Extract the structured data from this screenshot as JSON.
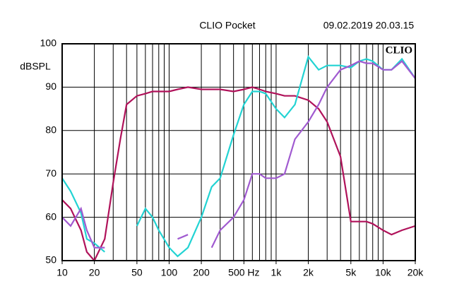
{
  "chart_data": {
    "type": "line",
    "title": "CLIO Pocket",
    "subtitle": "09.02.2019 20.03.15",
    "logo": "CLIO",
    "y_label": "dBSPL",
    "log_x": true,
    "grid": true,
    "x": [
      10,
      12,
      15,
      17,
      20,
      25,
      30,
      35,
      40,
      50,
      60,
      70,
      80,
      100,
      120,
      150,
      200,
      250,
      300,
      400,
      500,
      600,
      700,
      800,
      1000,
      1200,
      1500,
      2000,
      2500,
      3000,
      4000,
      5000,
      6000,
      7000,
      8000,
      10000,
      12000,
      15000,
      20000
    ],
    "series": [
      {
        "color": "#b0125a",
        "values": [
          64,
          62,
          57,
          52,
          50,
          55,
          68,
          78,
          86,
          88,
          88.5,
          89,
          89,
          89,
          89.5,
          90,
          89.5,
          89.5,
          89.5,
          89,
          89.5,
          90,
          89.5,
          89,
          88.5,
          88,
          88,
          87,
          85,
          82,
          74,
          59,
          59,
          59,
          58.5,
          57,
          56,
          57,
          58
        ]
      },
      {
        "color": "#22d3d3",
        "values": [
          69,
          66,
          61,
          55,
          54,
          52,
          null,
          null,
          null,
          58,
          62,
          60,
          57,
          53,
          51,
          53,
          60,
          67,
          69,
          79,
          86,
          89,
          89,
          88.5,
          85,
          83,
          86,
          97,
          94,
          95,
          95,
          94.5,
          96,
          96.5,
          96,
          94,
          94,
          96.5,
          92
        ]
      },
      {
        "color": "#a05ad0",
        "values": [
          60,
          58,
          62,
          57,
          53,
          53,
          null,
          null,
          null,
          null,
          null,
          null,
          null,
          null,
          55,
          56,
          null,
          53,
          57,
          60,
          64,
          70,
          70,
          69,
          69,
          70,
          78,
          82,
          86,
          90,
          94,
          95,
          96,
          95.5,
          95.5,
          94,
          94,
          96,
          92
        ]
      }
    ],
    "xlim": [
      10,
      20000
    ],
    "xticks": [
      10,
      20,
      50,
      100,
      200,
      {
        "value": 500,
        "label": "500 Hz"
      },
      {
        "value": 1000,
        "label": "1k"
      },
      {
        "value": 2000,
        "label": "2k"
      },
      {
        "value": 5000,
        "label": "5k"
      },
      {
        "value": 10000,
        "label": "10k"
      },
      {
        "value": 20000,
        "label": "20k"
      }
    ],
    "xgrid": [
      20,
      30,
      40,
      50,
      60,
      70,
      80,
      90,
      100,
      200,
      300,
      400,
      500,
      600,
      700,
      800,
      900,
      1000,
      2000,
      3000,
      4000,
      5000,
      6000,
      7000,
      8000,
      9000,
      10000
    ],
    "ylim": [
      50,
      100
    ],
    "yticks": [
      50,
      60,
      70,
      80,
      90,
      100
    ]
  }
}
